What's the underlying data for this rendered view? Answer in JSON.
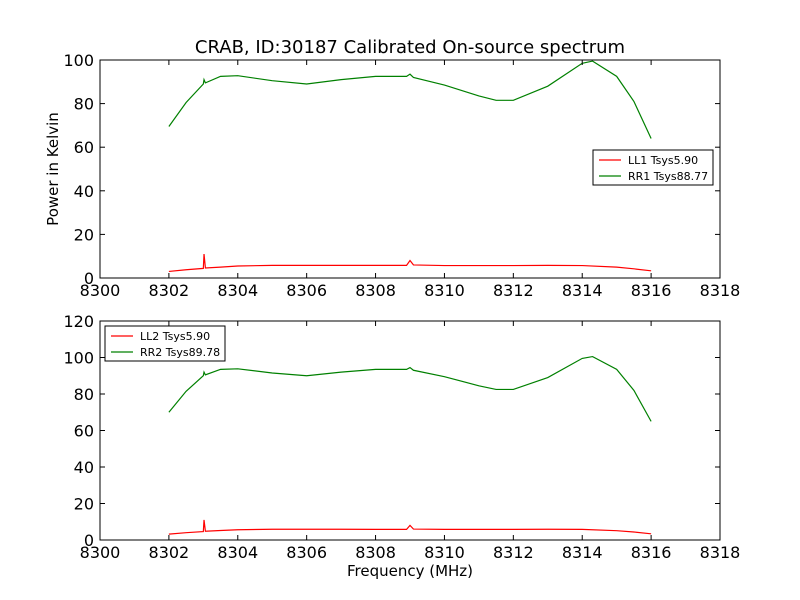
{
  "figure": {
    "title": "CRAB, ID:30187 Calibrated On-source spectrum"
  },
  "chart_data": [
    {
      "type": "line",
      "title": "CRAB, ID:30187 Calibrated On-source spectrum",
      "xlabel": "",
      "ylabel": "Power in Kelvin",
      "xlim": [
        8300,
        8318
      ],
      "ylim": [
        0,
        100
      ],
      "xticks": [
        8300,
        8302,
        8304,
        8306,
        8308,
        8310,
        8312,
        8314,
        8316,
        8318
      ],
      "yticks": [
        0,
        20,
        40,
        60,
        80,
        100
      ],
      "legend_position": "center-right",
      "grid": false,
      "series": [
        {
          "name": "LL1 Tsys5.90",
          "color": "#ff0000",
          "x": [
            8302,
            8302.5,
            8303,
            8303.02,
            8303.06,
            8303.5,
            8304,
            8305,
            8306,
            8307,
            8308,
            8308.9,
            8309,
            8309.1,
            8310,
            8311,
            8312,
            8313,
            8314,
            8315,
            8315.5,
            8316
          ],
          "y": [
            3.0,
            3.8,
            4.4,
            11.0,
            4.6,
            5.0,
            5.5,
            5.8,
            5.8,
            5.8,
            5.8,
            5.8,
            8.0,
            6.0,
            5.7,
            5.7,
            5.7,
            5.8,
            5.7,
            5.0,
            4.2,
            3.3
          ]
        },
        {
          "name": "RR1 Tsys88.77",
          "color": "#008000",
          "x": [
            8302,
            8302.5,
            8303,
            8303.02,
            8303.06,
            8303.5,
            8304,
            8305,
            8306,
            8307,
            8308,
            8308.9,
            8309,
            8309.1,
            8310,
            8311,
            8311.5,
            8312,
            8313,
            8314,
            8314.3,
            8315,
            8315.5,
            8316
          ],
          "y": [
            69.5,
            80.5,
            89.0,
            91.0,
            89.5,
            92.5,
            92.8,
            90.5,
            89.0,
            91.0,
            92.5,
            92.5,
            93.5,
            92.0,
            88.5,
            83.5,
            81.5,
            81.5,
            88.0,
            98.5,
            99.5,
            92.5,
            81.0,
            64.0
          ]
        }
      ]
    },
    {
      "type": "line",
      "title": "",
      "xlabel": "Frequency (MHz)",
      "ylabel": "",
      "xlim": [
        8300,
        8318
      ],
      "ylim": [
        0,
        120
      ],
      "xticks": [
        8300,
        8302,
        8304,
        8306,
        8308,
        8310,
        8312,
        8314,
        8316,
        8318
      ],
      "yticks": [
        0,
        20,
        40,
        60,
        80,
        100,
        120
      ],
      "legend_position": "upper-left",
      "grid": false,
      "series": [
        {
          "name": "LL2 Tsys5.90",
          "color": "#ff0000",
          "x": [
            8302,
            8302.5,
            8303,
            8303.02,
            8303.06,
            8303.5,
            8304,
            8305,
            8306,
            8307,
            8308,
            8308.9,
            8309,
            8309.1,
            8310,
            8311,
            8312,
            8313,
            8314,
            8315,
            8315.5,
            8316
          ],
          "y": [
            3.2,
            4.0,
            4.6,
            11.0,
            4.8,
            5.2,
            5.6,
            5.9,
            5.9,
            5.9,
            5.8,
            5.8,
            8.0,
            6.0,
            5.8,
            5.8,
            5.8,
            5.9,
            5.8,
            5.1,
            4.4,
            3.4
          ]
        },
        {
          "name": "RR2 Tsys89.78",
          "color": "#008000",
          "x": [
            8302,
            8302.5,
            8303,
            8303.02,
            8303.06,
            8303.5,
            8304,
            8305,
            8306,
            8307,
            8308,
            8308.9,
            8309,
            8309.1,
            8310,
            8311,
            8311.5,
            8312,
            8313,
            8314,
            8314.3,
            8315,
            8315.5,
            8316
          ],
          "y": [
            70.0,
            81.5,
            90.0,
            92.0,
            90.5,
            93.5,
            93.8,
            91.5,
            90.0,
            92.0,
            93.5,
            93.5,
            94.5,
            93.0,
            89.5,
            84.5,
            82.5,
            82.5,
            89.0,
            99.5,
            100.5,
            93.5,
            82.0,
            65.0
          ]
        }
      ]
    }
  ]
}
